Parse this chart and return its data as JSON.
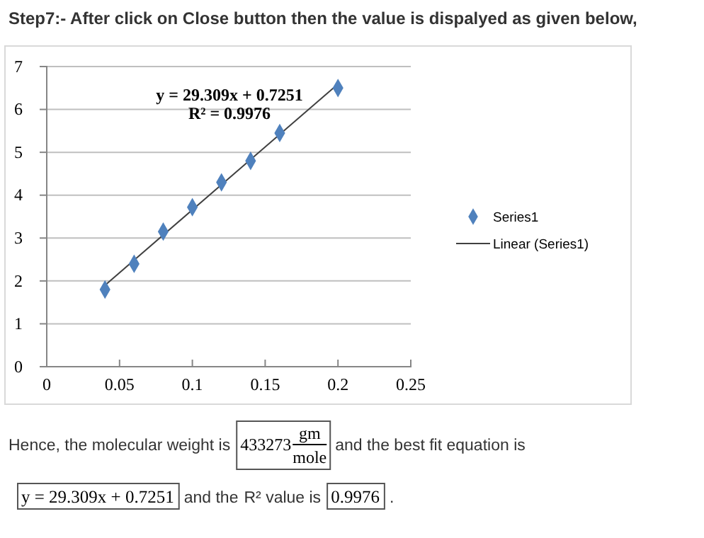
{
  "chart_data": {
    "type": "scatter",
    "title": "Step7:- After click on Close button then the value is dispalyed as given below,",
    "series": [
      {
        "name": "Series1",
        "marker": "diamond",
        "color": "#4f81bd",
        "x": [
          0.04,
          0.06,
          0.08,
          0.1,
          0.12,
          0.14,
          0.16,
          0.2
        ],
        "values": [
          1.8,
          2.4,
          3.15,
          3.72,
          4.3,
          4.8,
          5.45,
          6.5
        ]
      },
      {
        "name": "Linear (Series1)",
        "type": "line",
        "marker": "none",
        "color": "#404040",
        "x": [
          0.04,
          0.2
        ],
        "values": [
          1.9,
          6.59
        ]
      }
    ],
    "line_style": "solid",
    "xlim": [
      0,
      0.25
    ],
    "xticks": [
      0,
      0.05,
      0.1,
      0.15,
      0.2,
      0.25
    ],
    "ylim": [
      0,
      7
    ],
    "yticks": [
      0,
      1,
      2,
      3,
      4,
      5,
      6,
      7
    ],
    "grid": "y",
    "legend": "right",
    "annotations": [
      "y = 29.309x + 0.7251",
      "R² = 0.9976",
      "Hence, the molecular weight is",
      "433273",
      "gm",
      "mole",
      "and the best fit equation is",
      "y = 29.309x + 0.7251",
      "and the",
      "R² value is",
      "0.9976",
      "."
    ]
  }
}
